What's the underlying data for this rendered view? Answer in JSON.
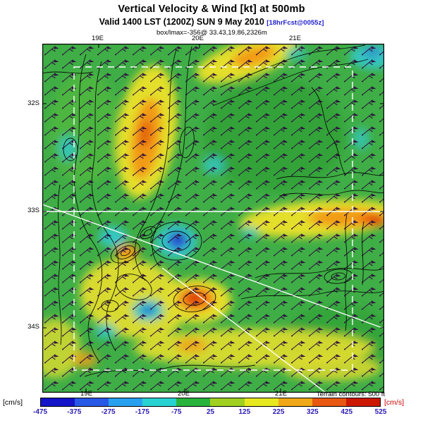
{
  "header": {
    "title": "Vertical Velocity & Wind [kt] at 500mb",
    "valid_line": "Valid 1400 LST (1200Z) SUN 9 May 2010",
    "forecast_tag": "[18hrFcst@0055z]",
    "tag_color": "#2222cc",
    "annotation": "box/lmax=-356@ 33.43,19.86,2326m"
  },
  "map": {
    "lat_labels": [
      "32S",
      "33S",
      "34S"
    ],
    "lon_labels_top": [
      "19E",
      "20E",
      "21E"
    ],
    "lon_labels_bottom": [
      "19E",
      "20E",
      "21E"
    ],
    "terrain_note": "Terrain contours: 500 ft"
  },
  "colorbar": {
    "unit_left": "[cm/s]",
    "unit_right": "[cm/s]",
    "unit_right_color": "#cc0000",
    "tick_color": "#2a1ab4",
    "ticks": [
      "-475",
      "-375",
      "-275",
      "-175",
      "-75",
      "25",
      "125",
      "225",
      "325",
      "425",
      "525"
    ],
    "segment_colors": [
      "#1414c8",
      "#2858e6",
      "#28a0f0",
      "#28d2d2",
      "#28b43c",
      "#a0d020",
      "#e8e820",
      "#f0a818",
      "#e85810",
      "#cc1800"
    ]
  },
  "chart_data": {
    "type": "heatmap",
    "title": "Vertical Velocity & Wind [kt] at 500mb",
    "valid": "Valid 1400 LST (1200Z) SUN 9 May 2010 [18hrFcst@0055z]",
    "variable": "vertical velocity",
    "units": "cm/s",
    "colorbar_ticks": [
      -475,
      -375,
      -275,
      -175,
      -75,
      25,
      125,
      225,
      325,
      425,
      525
    ],
    "colorbar_range": [
      -475,
      525
    ],
    "lat_ticks": [
      "32S",
      "33S",
      "34S"
    ],
    "lon_ticks": [
      "19E",
      "20E",
      "21E"
    ],
    "overlays": [
      "wind barbs [kt]",
      "terrain contours every 500 ft",
      "white model-domain box and cross-section lines"
    ],
    "annotation_max": "box/lmax=-356@ 33.43,19.86,2326m"
  }
}
